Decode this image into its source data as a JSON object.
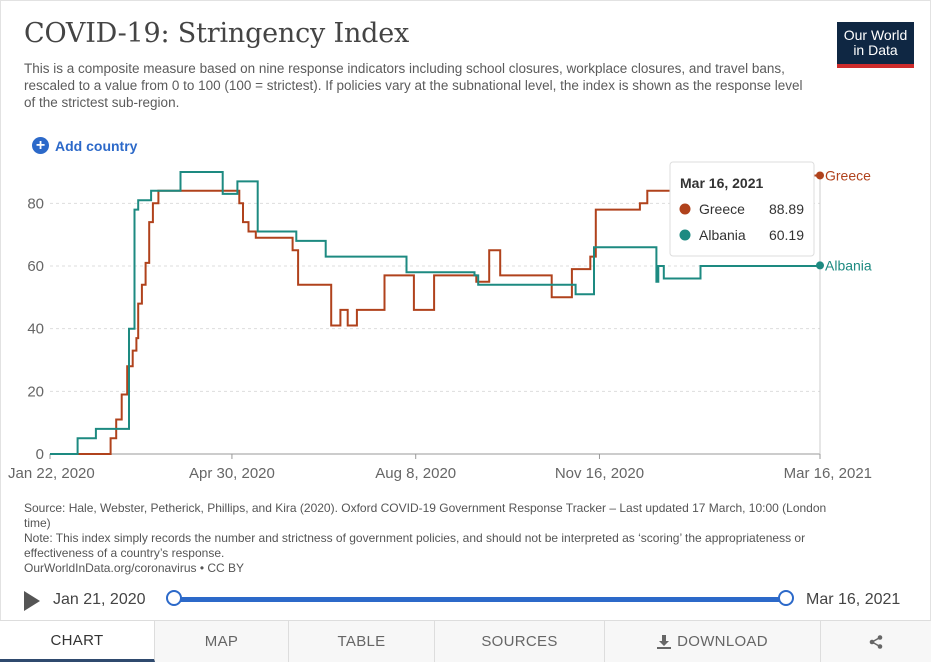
{
  "header": {
    "title": "COVID-19: Stringency Index",
    "subtitle": "This is a composite measure based on nine response indicators including school closures, workplace closures, and travel bans, rescaled to a value from 0 to 100 (100 = strictest). If policies vary at the subnational level, the index is shown as the response level of the strictest sub-region.",
    "logo_line1": "Our World",
    "logo_line2": "in Data"
  },
  "controls": {
    "add_country_label": "Add country"
  },
  "colors": {
    "greece": "#b0421c",
    "albania": "#1d8a81",
    "accent": "#2c69c9",
    "grid": "#dddddd"
  },
  "chart_data": {
    "type": "line",
    "title": "COVID-19: Stringency Index",
    "ylim": [
      0,
      90
    ],
    "y_ticks": [
      0,
      20,
      40,
      60,
      80
    ],
    "x_ticks": [
      "Jan 22, 2020",
      "Apr 30, 2020",
      "Aug 8, 2020",
      "Nov 16, 2020",
      "Mar 16, 2021"
    ],
    "grid": true,
    "legend": "end-of-line labels",
    "series": [
      {
        "name": "Greece",
        "color": "#b0421c",
        "end_label": "Greece",
        "points": [
          [
            "2020-01-22",
            0
          ],
          [
            "2020-02-23",
            0
          ],
          [
            "2020-02-24",
            5
          ],
          [
            "2020-02-27",
            11
          ],
          [
            "2020-02-28",
            11
          ],
          [
            "2020-03-01",
            19
          ],
          [
            "2020-03-04",
            28
          ],
          [
            "2020-03-07",
            33
          ],
          [
            "2020-03-09",
            37
          ],
          [
            "2020-03-10",
            48
          ],
          [
            "2020-03-12",
            54
          ],
          [
            "2020-03-14",
            61
          ],
          [
            "2020-03-16",
            74
          ],
          [
            "2020-03-18",
            80
          ],
          [
            "2020-03-21",
            84
          ],
          [
            "2020-04-30",
            84
          ],
          [
            "2020-05-04",
            80
          ],
          [
            "2020-05-06",
            74
          ],
          [
            "2020-05-09",
            71
          ],
          [
            "2020-05-13",
            69
          ],
          [
            "2020-06-02",
            65
          ],
          [
            "2020-06-05",
            54
          ],
          [
            "2020-06-15",
            54
          ],
          [
            "2020-06-23",
            41
          ],
          [
            "2020-06-27",
            41
          ],
          [
            "2020-06-28",
            46
          ],
          [
            "2020-06-30",
            46
          ],
          [
            "2020-07-02",
            41
          ],
          [
            "2020-07-05",
            41
          ],
          [
            "2020-07-07",
            46
          ],
          [
            "2020-07-15",
            46
          ],
          [
            "2020-07-22",
            57
          ],
          [
            "2020-08-05",
            57
          ],
          [
            "2020-08-07",
            46
          ],
          [
            "2020-08-17",
            46
          ],
          [
            "2020-08-18",
            57
          ],
          [
            "2020-08-27",
            57
          ],
          [
            "2020-09-10",
            55
          ],
          [
            "2020-09-15",
            55
          ],
          [
            "2020-09-17",
            65
          ],
          [
            "2020-09-21",
            65
          ],
          [
            "2020-09-23",
            57
          ],
          [
            "2020-10-15",
            57
          ],
          [
            "2020-10-21",
            50
          ],
          [
            "2020-10-29",
            50
          ],
          [
            "2020-11-01",
            59
          ],
          [
            "2020-11-08",
            59
          ],
          [
            "2020-11-11",
            63
          ],
          [
            "2020-11-14",
            78
          ],
          [
            "2020-12-05",
            78
          ],
          [
            "2020-12-08",
            80
          ],
          [
            "2020-12-12",
            84
          ],
          [
            "2021-01-20",
            84
          ],
          [
            "2021-02-02",
            83
          ],
          [
            "2021-02-10",
            88.89
          ],
          [
            "2021-03-16",
            88.89
          ]
        ]
      },
      {
        "name": "Albania",
        "color": "#1d8a81",
        "end_label": "Albania",
        "points": [
          [
            "2020-01-22",
            0
          ],
          [
            "2020-02-05",
            0
          ],
          [
            "2020-02-06",
            5
          ],
          [
            "2020-02-15",
            5
          ],
          [
            "2020-02-16",
            8
          ],
          [
            "2020-03-04",
            8
          ],
          [
            "2020-03-05",
            40
          ],
          [
            "2020-03-08",
            78
          ],
          [
            "2020-03-10",
            81
          ],
          [
            "2020-03-17",
            84
          ],
          [
            "2020-04-01",
            84
          ],
          [
            "2020-04-02",
            90
          ],
          [
            "2020-04-24",
            90
          ],
          [
            "2020-04-25",
            83
          ],
          [
            "2020-05-01",
            83
          ],
          [
            "2020-05-03",
            87
          ],
          [
            "2020-05-12",
            87
          ],
          [
            "2020-05-14",
            71
          ],
          [
            "2020-06-01",
            71
          ],
          [
            "2020-06-04",
            68
          ],
          [
            "2020-06-18",
            68
          ],
          [
            "2020-06-20",
            63
          ],
          [
            "2020-08-01",
            63
          ],
          [
            "2020-08-03",
            58
          ],
          [
            "2020-09-01",
            58
          ],
          [
            "2020-09-09",
            57
          ],
          [
            "2020-09-11",
            54
          ],
          [
            "2020-10-31",
            54
          ],
          [
            "2020-11-03",
            51
          ],
          [
            "2020-11-10",
            51
          ],
          [
            "2020-11-13",
            66
          ],
          [
            "2020-12-15",
            66
          ],
          [
            "2020-12-17",
            55
          ],
          [
            "2020-12-18",
            60
          ],
          [
            "2020-12-21",
            56
          ],
          [
            "2021-01-05",
            56
          ],
          [
            "2021-01-10",
            60
          ],
          [
            "2021-03-16",
            60.19
          ]
        ]
      }
    ],
    "tooltip": {
      "date": "Mar 16, 2021",
      "rows": [
        {
          "name": "Greece",
          "value": "88.89"
        },
        {
          "name": "Albania",
          "value": "60.19"
        }
      ]
    }
  },
  "footer": {
    "source": "Source: Hale, Webster, Petherick, Phillips, and Kira (2020). Oxford COVID-19 Government Response Tracker – Last updated 17 March, 10:00 (London time)",
    "note": "Note: This index simply records the number and strictness of government policies, and should not be interpreted as ‘scoring’ the appropriateness or effectiveness of a country’s response.",
    "link": "OurWorldInData.org/coronavirus • CC BY"
  },
  "timeline": {
    "start_label": "Jan 21, 2020",
    "end_label": "Mar 16, 2021",
    "start_pos": 0,
    "end_pos": 1
  },
  "tabs": [
    {
      "label": "CHART",
      "active": true
    },
    {
      "label": "MAP"
    },
    {
      "label": "TABLE"
    },
    {
      "label": "SOURCES"
    },
    {
      "label": "DOWNLOAD",
      "icon": "download-icon"
    },
    {
      "label": "",
      "icon": "share-icon"
    }
  ]
}
